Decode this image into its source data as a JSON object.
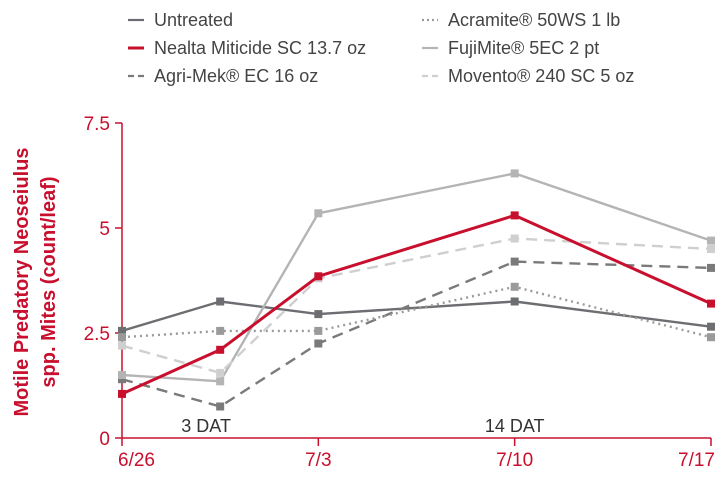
{
  "chart_data": {
    "type": "line",
    "title": "",
    "xlabel": "",
    "ylabel_lines": [
      "Motile Predatory Neoseiulus",
      "spp. Mites (count/leaf)"
    ],
    "x": [
      0,
      3.5,
      7,
      10.5,
      14,
      17.5,
      21
    ],
    "x_tick_labels": [
      "6/26",
      "7/3",
      "7/10",
      "7/17"
    ],
    "x_tick_positions": [
      0,
      7,
      14,
      21
    ],
    "y_tick_labels": [
      "0",
      "2.5",
      "5",
      "7.5"
    ],
    "y_tick_values": [
      0,
      2.5,
      5,
      7.5
    ],
    "ylim": [
      0,
      7.5
    ],
    "xlim": [
      0,
      21
    ],
    "annotations": [
      {
        "text": "3 DAT",
        "x": 3,
        "y": 0
      },
      {
        "text": "14 DAT",
        "x": 14,
        "y": 0
      }
    ],
    "legend_position": "top",
    "series": [
      {
        "name": "Untreated",
        "color": "#6d6e71",
        "style": "solid",
        "emphasis": false,
        "values": [
          2.55,
          3.25,
          2.95,
          null,
          3.25,
          null,
          2.65
        ]
      },
      {
        "name": "Nealta Miticide SC 13.7 oz",
        "color": "#c8102e",
        "style": "solid",
        "emphasis": true,
        "values": [
          1.05,
          2.1,
          3.85,
          null,
          5.3,
          null,
          3.2
        ]
      },
      {
        "name": "Agri-Mek® EC 16 oz",
        "color": "#7a7a7a",
        "style": "dashed",
        "emphasis": false,
        "values": [
          1.4,
          0.75,
          2.25,
          null,
          4.2,
          null,
          4.05
        ]
      },
      {
        "name": "Acramite® 50WS 1 lb",
        "color": "#9a9a9a",
        "style": "dotted",
        "emphasis": false,
        "values": [
          2.4,
          2.55,
          2.55,
          null,
          3.6,
          null,
          2.4
        ]
      },
      {
        "name": "FujiMite® 5EC 2 pt",
        "color": "#b4b4b4",
        "style": "solid",
        "emphasis": false,
        "values": [
          1.5,
          1.35,
          5.35,
          null,
          6.3,
          null,
          4.7
        ]
      },
      {
        "name": "Movento® 240 SC 5 oz",
        "color": "#cfcfcf",
        "style": "dashed",
        "emphasis": false,
        "values": [
          2.2,
          1.55,
          3.8,
          null,
          4.75,
          null,
          4.5
        ]
      }
    ]
  },
  "colors": {
    "accent": "#c8102e",
    "axis": "#c8102e"
  }
}
